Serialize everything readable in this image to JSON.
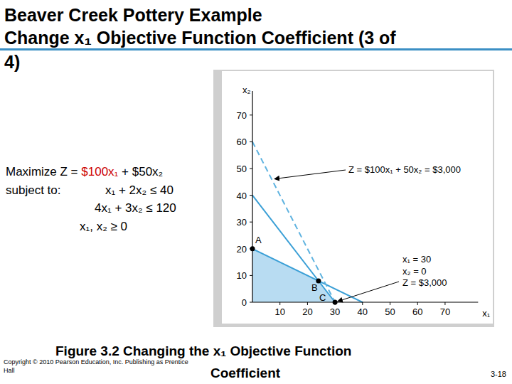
{
  "slide": {
    "title": [
      "Beaver Creek Pottery Example",
      "Change x₁ Objective Function Coefficient (3 of",
      "4)"
    ],
    "model": {
      "objective": [
        {
          "text": "Maximize Z = "
        },
        {
          "text": "$100x₁",
          "highlight": true
        },
        {
          "text": " + $50x₂"
        }
      ],
      "subject_to": "subject to:",
      "constraints": [
        "x₁ + 2x₂ ≤ 40",
        "4x₁ + 3x₂ ≤ 120",
        "x₁, x₂ ≥ 0"
      ],
      "highlight_color": "#cc0000"
    },
    "caption": [
      "Figure 3.2  Changing the x₁ Objective Function",
      "Coefficient"
    ],
    "copyright": [
      "Copyright © 2010 Pearson Education, Inc. Publishing as Prentice",
      "Hall"
    ],
    "page": "3-18"
  },
  "chart_data": {
    "type": "line",
    "x_label": "x₁",
    "y_label": "x₂",
    "xlim": [
      0,
      82
    ],
    "ylim": [
      0,
      79
    ],
    "xticks": [
      10,
      20,
      30,
      40,
      50,
      60,
      70
    ],
    "yticks": [
      0,
      10,
      20,
      30,
      40,
      50,
      60,
      70
    ],
    "grid": false,
    "series": [
      {
        "type": "area",
        "x": [
          0,
          0,
          24,
          30
        ],
        "values": [
          0,
          20,
          8,
          0
        ],
        "color": "#b8dcf2"
      },
      {
        "type": "line",
        "x": [
          0,
          40
        ],
        "values": [
          20,
          0
        ],
        "color": "#3a9fd6",
        "line_style": "solid"
      },
      {
        "type": "line",
        "x": [
          0,
          30
        ],
        "values": [
          40,
          0
        ],
        "color": "#3a9fd6",
        "line_style": "solid"
      },
      {
        "type": "line",
        "x": [
          0,
          30
        ],
        "values": [
          60,
          0
        ],
        "color": "#5fb3e0",
        "line_style": "dashed"
      },
      {
        "type": "scatter",
        "x": [
          0,
          24,
          30
        ],
        "values": [
          20,
          8,
          0
        ],
        "labels": [
          "A",
          "B",
          "C"
        ],
        "color": "#000000",
        "marker": "circle"
      }
    ],
    "annotations": [
      {
        "lines": [
          "Z = $100x₁ + 50x₂ = $3,000"
        ],
        "x": 7,
        "y": 46
      },
      {
        "lines": [
          "x₁ = 30",
          "x₂ = 0",
          "Z = $3,000"
        ],
        "x": 30,
        "y": 0
      }
    ]
  }
}
